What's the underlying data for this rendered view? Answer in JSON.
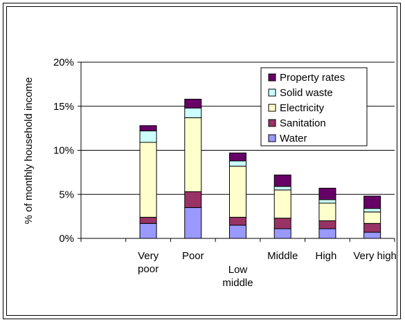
{
  "chart_data": {
    "type": "bar",
    "stacked": true,
    "categories": [
      [
        "Very",
        "poor"
      ],
      [
        "Poor"
      ],
      [
        "Low",
        "middle"
      ],
      [
        "Middle"
      ],
      [
        "High"
      ],
      [
        "Very high"
      ]
    ],
    "category_slot_count": 7,
    "first_category_slot": 1,
    "ylabel": "% of monthly household income",
    "ylim": [
      0,
      20
    ],
    "ytick_values": [
      0,
      5,
      10,
      15,
      20
    ],
    "ytick_labels": [
      "0%",
      "5%",
      "10%",
      "15%",
      "20%"
    ],
    "grid": "horizontal",
    "legend_position": "top-right",
    "series": [
      {
        "name": "Water",
        "color": "#9999ff",
        "values": [
          1.7,
          3.5,
          1.5,
          1.1,
          1.1,
          0.7
        ]
      },
      {
        "name": "Sanitation",
        "color": "#993366",
        "values": [
          0.7,
          1.8,
          0.9,
          1.2,
          0.9,
          1.0
        ]
      },
      {
        "name": "Electricity",
        "color": "#ffffcc",
        "values": [
          8.5,
          8.4,
          5.8,
          3.2,
          2.0,
          1.3
        ]
      },
      {
        "name": "Solid waste",
        "color": "#ccffff",
        "values": [
          1.3,
          1.1,
          0.6,
          0.4,
          0.4,
          0.4
        ]
      },
      {
        "name": "Property rates",
        "color": "#660066",
        "values": [
          0.6,
          1.0,
          0.9,
          1.3,
          1.3,
          1.4
        ]
      }
    ]
  }
}
